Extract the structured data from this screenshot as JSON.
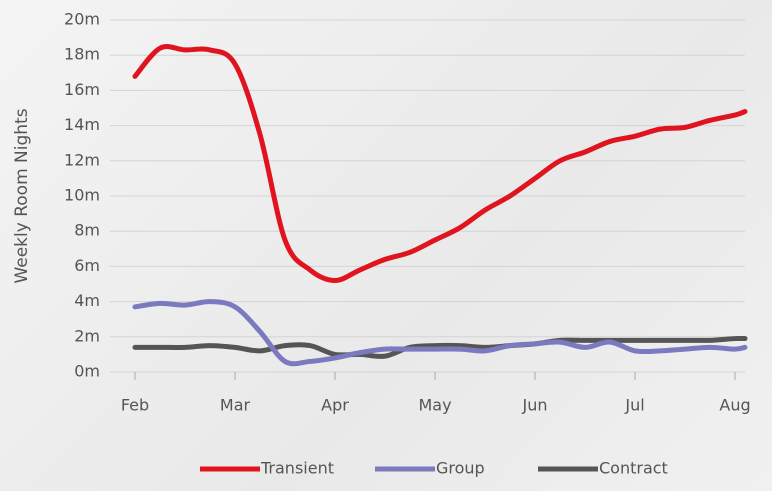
{
  "chart_data": {
    "type": "line",
    "ylabel": "Weekly Room Nights",
    "x": [
      0,
      0.25,
      0.5,
      0.75,
      1,
      1.25,
      1.5,
      1.75,
      2,
      2.25,
      2.5,
      2.75,
      3,
      3.25,
      3.5,
      3.75,
      4,
      4.25,
      4.5,
      4.75,
      5,
      5.25,
      5.5,
      5.75,
      6,
      6.1
    ],
    "series": [
      {
        "name": "Transient",
        "color": "#e0141e",
        "values": [
          16.8,
          18.4,
          18.3,
          18.3,
          17.5,
          13.5,
          7.5,
          5.8,
          5.2,
          5.8,
          6.4,
          6.8,
          7.5,
          8.2,
          9.2,
          10.0,
          11.0,
          12.0,
          12.5,
          13.1,
          13.4,
          13.8,
          13.9,
          14.3,
          14.6,
          14.8
        ]
      },
      {
        "name": "Group",
        "color": "#7b79c0",
        "values": [
          3.7,
          3.9,
          3.8,
          4.0,
          3.7,
          2.3,
          0.6,
          0.6,
          0.8,
          1.1,
          1.3,
          1.3,
          1.3,
          1.3,
          1.2,
          1.5,
          1.6,
          1.7,
          1.4,
          1.7,
          1.2,
          1.2,
          1.3,
          1.4,
          1.3,
          1.4
        ]
      },
      {
        "name": "Contract",
        "color": "#555555",
        "values": [
          1.4,
          1.4,
          1.4,
          1.5,
          1.4,
          1.2,
          1.5,
          1.5,
          1.0,
          1.0,
          0.9,
          1.4,
          1.5,
          1.5,
          1.4,
          1.5,
          1.6,
          1.8,
          1.8,
          1.8,
          1.8,
          1.8,
          1.8,
          1.8,
          1.9,
          1.9
        ]
      }
    ],
    "xlim": [
      -0.25,
      6.1
    ],
    "xticks": [
      {
        "value": 0,
        "label": "Feb"
      },
      {
        "value": 1,
        "label": "Mar"
      },
      {
        "value": 2,
        "label": "Apr"
      },
      {
        "value": 3,
        "label": "May"
      },
      {
        "value": 4,
        "label": "Jun"
      },
      {
        "value": 5,
        "label": "Jul"
      },
      {
        "value": 6,
        "label": "Aug"
      }
    ],
    "ylim": [
      0,
      20
    ],
    "yticks": [
      {
        "value": 0,
        "label": "0m"
      },
      {
        "value": 2,
        "label": "2m"
      },
      {
        "value": 4,
        "label": "4m"
      },
      {
        "value": 6,
        "label": "6m"
      },
      {
        "value": 8,
        "label": "8m"
      },
      {
        "value": 10,
        "label": "10m"
      },
      {
        "value": 12,
        "label": "12m"
      },
      {
        "value": 14,
        "label": "14m"
      },
      {
        "value": 16,
        "label": "16m"
      },
      {
        "value": 18,
        "label": "18m"
      },
      {
        "value": 20,
        "label": "20m"
      }
    ],
    "grid": true,
    "legend": "bottom"
  }
}
